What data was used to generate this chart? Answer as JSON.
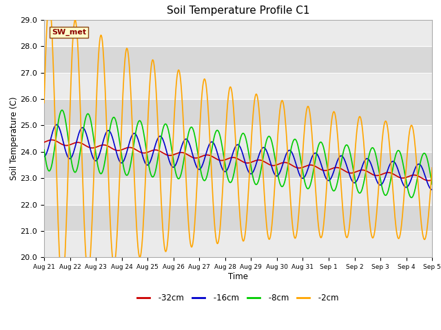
{
  "title": "Soil Temperature Profile C1",
  "xlabel": "Time",
  "ylabel": "Soil Temperature (C)",
  "ylim": [
    20.0,
    29.0
  ],
  "yticks": [
    20.0,
    21.0,
    22.0,
    23.0,
    24.0,
    25.0,
    26.0,
    27.0,
    28.0,
    29.0
  ],
  "xtick_labels": [
    "Aug 21",
    "Aug 22",
    "Aug 23",
    "Aug 24",
    "Aug 25",
    "Aug 26",
    "Aug 27",
    "Aug 28",
    "Aug 29",
    "Aug 30",
    "Aug 31",
    "Sep 1",
    "Sep 2",
    "Sep 3",
    "Sep 4",
    "Sep 5"
  ],
  "annotation_text": "SW_met",
  "annotation_color": "#8B0000",
  "annotation_bg": "#FFFFCC",
  "series": {
    "-32cm": {
      "color": "#CC0000",
      "linewidth": 1.2
    },
    "-16cm": {
      "color": "#0000CC",
      "linewidth": 1.2
    },
    "-8cm": {
      "color": "#00CC00",
      "linewidth": 1.2
    },
    "-2cm": {
      "color": "#FFA500",
      "linewidth": 1.2
    }
  },
  "n_days": 15
}
